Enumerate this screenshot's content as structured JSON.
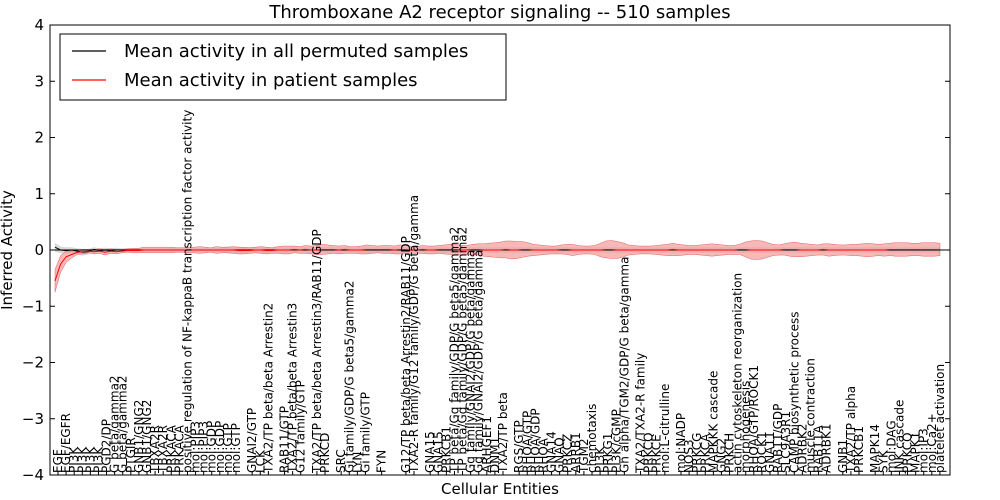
{
  "chart_data": {
    "type": "line",
    "title": "Thromboxane A2 receptor signaling -- 510 samples",
    "xlabel": "Cellular Entities",
    "ylabel": "Inferred Activity",
    "ylim": [
      -4,
      4
    ],
    "yticks": [
      -4,
      -3,
      -2,
      -1,
      0,
      1,
      2,
      3,
      4
    ],
    "x_count": 160,
    "grid": false,
    "legend": {
      "placement": "top-left",
      "entries": [
        {
          "label": "Mean activity in all permuted samples",
          "color": "#000000"
        },
        {
          "label": "Mean activity in patient samples",
          "color": "#ff0000"
        }
      ]
    },
    "zero_line": 0,
    "entity_labels": [
      {
        "i": 0,
        "label": "EGF"
      },
      {
        "i": 1,
        "label": "EGF/EGFR"
      },
      {
        "i": 2,
        "label": "PI3K"
      },
      {
        "i": 3,
        "label": "PI3K"
      },
      {
        "i": 4,
        "label": "PI3K"
      },
      {
        "i": 5,
        "label": "PI3K"
      },
      {
        "i": 6,
        "label": "PGD2/DP"
      },
      {
        "i": 7,
        "label": "G beta/gamma2"
      },
      {
        "i": 8,
        "label": "G beta/gamma2"
      },
      {
        "i": 9,
        "label": "PTGIR"
      },
      {
        "i": 10,
        "label": "GNB1/GNG2"
      },
      {
        "i": 11,
        "label": "GNB1/GNG2"
      },
      {
        "i": 12,
        "label": "TBXA2R"
      },
      {
        "i": 13,
        "label": "TBXA2R"
      },
      {
        "i": 14,
        "label": "PRKACA"
      },
      {
        "i": 15,
        "label": "PRKACA"
      },
      {
        "i": 16,
        "label": "positive regulation of NF-kappaB transcription factor activity"
      },
      {
        "i": 17,
        "label": "mol:PIP3"
      },
      {
        "i": 18,
        "label": "mol:PIP3"
      },
      {
        "i": 19,
        "label": "mol:GDP"
      },
      {
        "i": 20,
        "label": "mol:GDP"
      },
      {
        "i": 21,
        "label": "mol:GTP"
      },
      {
        "i": 22,
        "label": "mol:GTP"
      },
      {
        "i": 24,
        "label": "GNAI2/GTP"
      },
      {
        "i": 25,
        "label": "LCK"
      },
      {
        "i": 26,
        "label": "TXA2/TP beta/beta Arrestin2"
      },
      {
        "i": 28,
        "label": "RAB11/GTP"
      },
      {
        "i": 29,
        "label": "TXA2/TP beta/beta Arrestin3"
      },
      {
        "i": 30,
        "label": "G12 family/GTP"
      },
      {
        "i": 32,
        "label": "TXA2/TP beta/beta Arrestin3/RAB11/GDP"
      },
      {
        "i": 33,
        "label": "PRKCD"
      },
      {
        "i": 35,
        "label": "SRC"
      },
      {
        "i": 36,
        "label": "Gi family/GDP/G beta5/gamma2"
      },
      {
        "i": 37,
        "label": "LYN"
      },
      {
        "i": 38,
        "label": "Gi family/GTP"
      },
      {
        "i": 40,
        "label": "FYN"
      },
      {
        "i": 43,
        "label": "G12/TP beta/beta Arrestin2/RAB11/GDP"
      },
      {
        "i": 44,
        "label": "TXA2-R family/G12 family/GDP/G beta/gamma"
      },
      {
        "i": 46,
        "label": "GNA15"
      },
      {
        "i": 47,
        "label": "GNA15"
      },
      {
        "i": 48,
        "label": "PRKCB1"
      },
      {
        "i": 49,
        "label": "TP beta/Gq family/GDP/G beta5/gamma2"
      },
      {
        "i": 50,
        "label": "TP beta/Gq family/GDP/G beta5/gamma2"
      },
      {
        "i": 51,
        "label": "Gq family/GNAI2/GDP/G beta/gamma"
      },
      {
        "i": 52,
        "label": "Gq family/GNAI2/GDP/G beta/gamma"
      },
      {
        "i": 53,
        "label": "ARHGEF1"
      },
      {
        "i": 54,
        "label": "DNM1"
      },
      {
        "i": 55,
        "label": "TXA2/TP beta"
      },
      {
        "i": 57,
        "label": "RGS/GTP"
      },
      {
        "i": 58,
        "label": "RHOA/GTP"
      },
      {
        "i": 59,
        "label": "RHOA/GDP"
      },
      {
        "i": 60,
        "label": "RHOA"
      },
      {
        "i": 61,
        "label": "GNA14"
      },
      {
        "i": 62,
        "label": "GNAQ"
      },
      {
        "i": 63,
        "label": "PRKCZ"
      },
      {
        "i": 64,
        "label": "ARRB1"
      },
      {
        "i": 65,
        "label": "TGM2"
      },
      {
        "i": 66,
        "label": "chemotaxis"
      },
      {
        "i": 67,
        "label": "PI3K"
      },
      {
        "i": 68,
        "label": "PRKG1"
      },
      {
        "i": 69,
        "label": "PI3K/cGMP"
      },
      {
        "i": 70,
        "label": "Gh alpha/TGM2/GDP/G beta/gamma"
      },
      {
        "i": 72,
        "label": "TXA2/TXA2-R family"
      },
      {
        "i": 73,
        "label": "PRKCQ"
      },
      {
        "i": 74,
        "label": "PRKCE"
      },
      {
        "i": 75,
        "label": "mol:L-citrulline"
      },
      {
        "i": 77,
        "label": "mol:NADP"
      },
      {
        "i": 78,
        "label": "NOS3"
      },
      {
        "i": 79,
        "label": "PRKCG"
      },
      {
        "i": 80,
        "label": "PRKCA"
      },
      {
        "i": 81,
        "label": "MAPKKK cascade"
      },
      {
        "i": 82,
        "label": "GNG2"
      },
      {
        "i": 83,
        "label": "PRKCH"
      },
      {
        "i": 84,
        "label": "actin cytoskeleton reorganization"
      },
      {
        "i": 85,
        "label": "morphogenesis"
      },
      {
        "i": 86,
        "label": "RHOA/GTP/ROCK1"
      },
      {
        "i": 87,
        "label": "ROCK1"
      },
      {
        "i": 88,
        "label": "GNA11"
      },
      {
        "i": 89,
        "label": "RAB11/GDP"
      },
      {
        "i": 90,
        "label": "SLC9A3R1"
      },
      {
        "i": 91,
        "label": "CAMP biosynthetic process"
      },
      {
        "i": 92,
        "label": "ADRBK2"
      },
      {
        "i": 93,
        "label": "muscle contraction"
      },
      {
        "i": 94,
        "label": "RAB11A"
      },
      {
        "i": 95,
        "label": "ADRBK1"
      },
      {
        "i": 97,
        "label": "GNB1"
      },
      {
        "i": 98,
        "label": "TXA2/TP alpha"
      },
      {
        "i": 99,
        "label": "PRKCB1"
      },
      {
        "i": 101,
        "label": "MAPK14"
      },
      {
        "i": 102,
        "label": "SYK"
      },
      {
        "i": 103,
        "label": "mol:DAG"
      },
      {
        "i": 104,
        "label": "JNK cascade"
      },
      {
        "i": 105,
        "label": "PRKCQ"
      },
      {
        "i": 106,
        "label": "MAPK1"
      },
      {
        "i": 107,
        "label": "mol:IP3"
      },
      {
        "i": 108,
        "label": "mol:Ca2+"
      },
      {
        "i": 109,
        "label": "platelet activation"
      }
    ],
    "series": [
      {
        "name": "Mean activity in all permuted samples",
        "color": "#000000",
        "fill_color": "#c8c8c8",
        "values": [
          0.05,
          0.0,
          -0.01,
          0.0,
          -0.02,
          -0.04,
          -0.03,
          0.01,
          -0.01,
          0.0,
          -0.01,
          0.0,
          0.0,
          0.0,
          0.0,
          0.0,
          0.0,
          0.0,
          0.0,
          0.0,
          0.0,
          0.0,
          0.0,
          0.0,
          0.0,
          0.0,
          0.0,
          0.0,
          0.0,
          0.0,
          0.0,
          0.0,
          0.0,
          0.0,
          0.0,
          0.0,
          0.0,
          0.0,
          0.0,
          0.0,
          0.0,
          0.0,
          0.0,
          0.0,
          0.0,
          0.0,
          0.0,
          0.0,
          0.0,
          0.0,
          0.0,
          0.0,
          0.0,
          0.0,
          0.0,
          0.0,
          0.0,
          0.0,
          0.0,
          0.0,
          0.0,
          0.0,
          0.0,
          0.0,
          0.0,
          0.0,
          0.0,
          0.0,
          0.0,
          0.0,
          0.0,
          0.0,
          0.0,
          0.0,
          0.0,
          0.0,
          0.0,
          0.0,
          0.0,
          0.0,
          0.0,
          0.0,
          0.0,
          0.0,
          0.0,
          0.0,
          0.0,
          0.0,
          0.0,
          0.0,
          0.0,
          0.0,
          0.0,
          0.0,
          0.0,
          0.0,
          0.0,
          0.0,
          0.0,
          0.0,
          0.0,
          0.0,
          0.0,
          0.0,
          0.0,
          0.0,
          0.0,
          0.0,
          0.0,
          0.0,
          0.0,
          0.0,
          0.0,
          0.0,
          0.0,
          0.0,
          0.0,
          0.0,
          0.0,
          0.0,
          0.0,
          0.0,
          0.0,
          0.0,
          0.0,
          0.0,
          0.0,
          0.0,
          0.0,
          0.0,
          0.0,
          0.0,
          0.0,
          0.0,
          0.0,
          0.0,
          0.0,
          0.0,
          0.0,
          0.0,
          0.0,
          0.0,
          0.0,
          0.0,
          0.0,
          0.0,
          0.0,
          0.0,
          0.0,
          0.0,
          0.0,
          0.0,
          0.0,
          0.0,
          0.0,
          0.0,
          0.0,
          0.0,
          0.0,
          0.0,
          0.0,
          0.0
        ],
        "band": [
          0.08,
          0.06,
          0.06,
          0.05,
          0.05,
          0.06,
          0.05,
          0.04,
          0.04,
          0.04,
          0.04,
          0.04,
          0.03,
          0.03,
          0.03,
          0.03,
          0.03,
          0.03,
          0.03,
          0.03,
          0.03,
          0.03,
          0.03,
          0.03,
          0.03,
          0.03,
          0.03,
          0.03,
          0.03,
          0.03,
          0.05,
          0.06,
          0.05,
          0.06,
          0.05,
          0.05,
          0.06,
          0.05,
          0.05,
          0.04,
          0.05,
          0.05,
          0.05,
          0.05,
          0.05,
          0.05,
          0.05,
          0.05,
          0.05,
          0.05,
          0.05,
          0.05,
          0.05,
          0.05,
          0.05,
          0.05,
          0.05,
          0.05,
          0.05,
          0.05,
          0.05,
          0.05,
          0.05,
          0.05,
          0.05,
          0.05,
          0.05,
          0.05,
          0.05,
          0.05,
          0.05,
          0.05,
          0.05,
          0.05,
          0.05,
          0.05,
          0.05,
          0.05,
          0.05,
          0.05,
          0.05,
          0.05,
          0.05,
          0.05,
          0.05,
          0.05,
          0.05,
          0.05,
          0.05,
          0.05,
          0.05,
          0.05,
          0.05,
          0.05,
          0.05,
          0.05,
          0.05,
          0.05,
          0.05,
          0.05,
          0.05,
          0.05,
          0.05,
          0.05,
          0.05,
          0.05,
          0.05,
          0.05,
          0.05,
          0.05,
          0.05,
          0.05,
          0.05,
          0.05,
          0.05,
          0.05,
          0.05,
          0.05,
          0.05,
          0.05,
          0.05,
          0.05,
          0.05,
          0.05,
          0.05,
          0.05,
          0.05,
          0.05,
          0.05,
          0.05,
          0.05,
          0.05,
          0.05,
          0.05,
          0.05,
          0.05,
          0.05,
          0.05,
          0.05,
          0.05,
          0.05,
          0.05,
          0.05,
          0.05,
          0.05,
          0.05,
          0.05,
          0.05,
          0.05,
          0.05,
          0.05,
          0.05,
          0.05,
          0.05,
          0.05,
          0.05,
          0.05,
          0.05,
          0.05,
          0.05,
          0.05,
          0.05
        ]
      },
      {
        "name": "Mean activity in patient samples",
        "color": "#ff0000",
        "fill_color": "#f4a0a0",
        "values": [
          -0.55,
          -0.25,
          -0.12,
          -0.08,
          -0.04,
          -0.03,
          -0.02,
          -0.03,
          -0.02,
          -0.04,
          -0.02,
          -0.03,
          -0.02,
          -0.01,
          -0.01,
          -0.01,
          0.0,
          0.0,
          0.0,
          0.0,
          0.0,
          0.0,
          0.0,
          0.0,
          0.0,
          0.0,
          0.0,
          0.0,
          0.0,
          0.0,
          0.0,
          0.0,
          0.0,
          -0.01,
          -0.01,
          -0.01,
          0.0,
          0.0,
          -0.01,
          -0.01,
          0.0,
          0.0,
          0.0,
          0.01,
          0.0,
          0.01,
          0.0,
          0.0,
          0.01,
          0.01,
          0.01,
          0.0,
          0.01,
          0.0,
          0.0,
          0.0,
          0.01,
          0.01,
          0.01,
          0.01,
          0.01,
          0.0,
          0.01,
          0.01,
          0.0,
          0.0,
          0.01,
          0.0,
          0.0,
          0.01,
          0.01,
          0.01,
          0.01,
          0.0,
          0.0,
          0.01,
          0.01,
          0.0,
          0.0,
          0.0,
          0.0,
          0.01,
          0.0,
          0.0,
          0.01,
          0.01,
          0.0,
          0.0,
          0.0,
          0.0,
          0.0,
          0.01,
          0.01,
          0.0,
          0.0,
          0.0,
          0.0,
          0.0,
          0.0,
          0.01,
          0.01,
          0.0,
          0.0,
          0.0,
          0.0,
          0.0,
          0.0,
          0.0,
          0.0,
          0.0,
          0.0,
          0.01,
          0.0,
          0.0,
          0.0,
          0.0,
          0.0,
          0.0,
          0.0,
          0.0,
          0.0,
          0.0,
          0.0,
          0.01,
          0.01,
          0.0,
          0.0,
          0.0,
          0.0,
          0.0,
          0.0,
          0.01,
          0.01,
          0.01,
          0.0,
          0.0,
          0.0,
          0.0,
          0.01,
          0.0,
          0.0,
          0.0,
          0.0,
          0.0,
          0.0,
          0.0,
          0.0,
          0.0,
          0.0,
          0.0,
          0.01,
          0.01,
          0.01,
          0.01,
          0.01,
          0.01,
          0.01,
          0.01,
          0.01,
          0.01
        ],
        "band": [
          0.2,
          0.15,
          0.1,
          0.06,
          0.04,
          0.04,
          0.03,
          0.04,
          0.04,
          0.05,
          0.04,
          0.04,
          0.03,
          0.03,
          0.04,
          0.04,
          0.05,
          0.05,
          0.05,
          0.05,
          0.05,
          0.05,
          0.04,
          0.04,
          0.05,
          0.05,
          0.06,
          0.05,
          0.04,
          0.06,
          0.05,
          0.05,
          0.06,
          0.06,
          0.06,
          0.05,
          0.05,
          0.06,
          0.06,
          0.05,
          0.06,
          0.07,
          0.07,
          0.06,
          0.06,
          0.07,
          0.07,
          0.08,
          0.09,
          0.08,
          0.07,
          0.07,
          0.07,
          0.06,
          0.06,
          0.07,
          0.08,
          0.07,
          0.06,
          0.07,
          0.07,
          0.07,
          0.08,
          0.07,
          0.06,
          0.06,
          0.07,
          0.07,
          0.07,
          0.07,
          0.08,
          0.09,
          0.09,
          0.08,
          0.08,
          0.09,
          0.1,
          0.11,
          0.12,
          0.13,
          0.14,
          0.15,
          0.16,
          0.15,
          0.14,
          0.12,
          0.1,
          0.09,
          0.08,
          0.07,
          0.07,
          0.08,
          0.09,
          0.1,
          0.08,
          0.07,
          0.07,
          0.08,
          0.12,
          0.15,
          0.16,
          0.15,
          0.13,
          0.09,
          0.08,
          0.07,
          0.07,
          0.07,
          0.08,
          0.09,
          0.1,
          0.11,
          0.1,
          0.09,
          0.08,
          0.08,
          0.09,
          0.1,
          0.11,
          0.1,
          0.09,
          0.08,
          0.08,
          0.09,
          0.13,
          0.16,
          0.17,
          0.16,
          0.13,
          0.1,
          0.09,
          0.1,
          0.12,
          0.13,
          0.12,
          0.11,
          0.1,
          0.09,
          0.1,
          0.11,
          0.1,
          0.09,
          0.09,
          0.1,
          0.1,
          0.11,
          0.12,
          0.11,
          0.1,
          0.11,
          0.11,
          0.12,
          0.12,
          0.12,
          0.11,
          0.11,
          0.12,
          0.12,
          0.12,
          0.11
        ]
      }
    ]
  }
}
